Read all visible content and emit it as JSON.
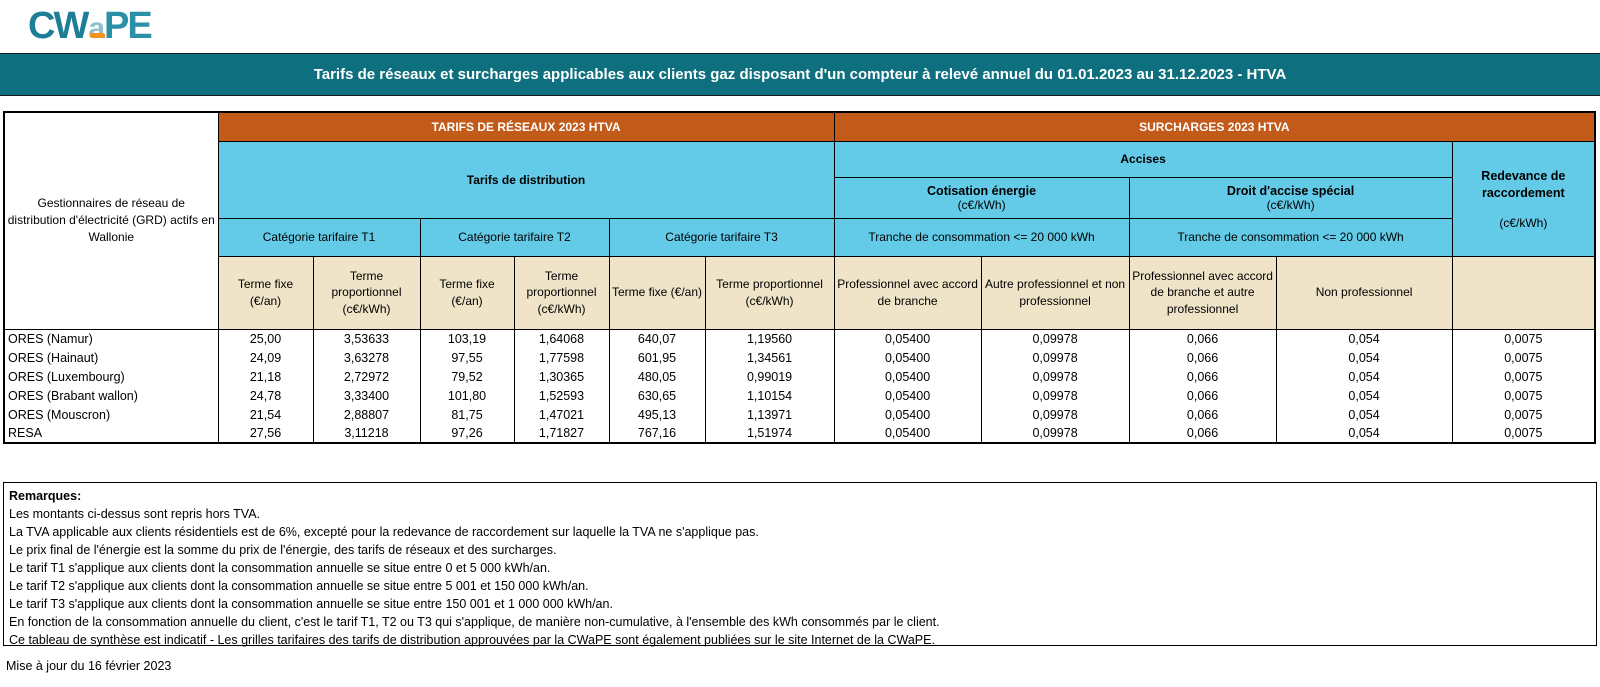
{
  "logo": {
    "cw": "CW",
    "a": "a",
    "pe": "PE"
  },
  "banner": {
    "title": "Tarifs de réseaux et surcharges applicables aux clients gaz disposant d'un compteur à relevé annuel du 01.01.2023 au 31.12.2023 - HTVA"
  },
  "table": {
    "row_header": "Gestionnaires de réseau de distribution d'électricité (GRD) actifs en Wallonie",
    "tarifs_title": "TARIFS DE RÉSEAUX 2023 HTVA",
    "surcharges_title": "SURCHARGES 2023 HTVA",
    "tarifs_group": "Tarifs de distribution",
    "accises_group": "Accises",
    "redevance": {
      "title": "Redevance de raccordement",
      "unit": "(c€/kWh)"
    },
    "accise_groups": [
      {
        "title": "Cotisation énergie",
        "unit": "(c€/kWh)"
      },
      {
        "title": "Droit d'accise spécial",
        "unit": "(c€/kWh)"
      }
    ],
    "categories": [
      "Catégorie tarifaire T1",
      "Catégorie tarifaire T2",
      "Catégorie tarifaire T3"
    ],
    "tranches": [
      "Tranche de consommation <= 20 000 kWh",
      "Tranche de consommation <= 20 000 kWh"
    ],
    "tarif_cols": [
      "Terme fixe (€/an)",
      "Terme proportionnel (c€/kWh)",
      "Terme fixe (€/an)",
      "Terme proportionnel (c€/kWh)",
      "Terme fixe (€/an)",
      "Terme proportionnel (c€/kWh)"
    ],
    "surcharge_cols": [
      "Professionnel avec accord de branche",
      "Autre professionnel et non professionnel",
      "Professionnel avec accord de branche et autre professionnel",
      "Non professionnel"
    ],
    "rows": [
      {
        "name": "ORES (Namur)",
        "values": [
          "25,00",
          "3,53633",
          "103,19",
          "1,64068",
          "640,07",
          "1,19560",
          "0,05400",
          "0,09978",
          "0,066",
          "0,054",
          "0,0075"
        ]
      },
      {
        "name": "ORES (Hainaut)",
        "values": [
          "24,09",
          "3,63278",
          "97,55",
          "1,77598",
          "601,95",
          "1,34561",
          "0,05400",
          "0,09978",
          "0,066",
          "0,054",
          "0,0075"
        ]
      },
      {
        "name": "ORES (Luxembourg)",
        "values": [
          "21,18",
          "2,72972",
          "79,52",
          "1,30365",
          "480,05",
          "0,99019",
          "0,05400",
          "0,09978",
          "0,066",
          "0,054",
          "0,0075"
        ]
      },
      {
        "name": "ORES (Brabant wallon)",
        "values": [
          "24,78",
          "3,33400",
          "101,80",
          "1,52593",
          "630,65",
          "1,10154",
          "0,05400",
          "0,09978",
          "0,066",
          "0,054",
          "0,0075"
        ]
      },
      {
        "name": "ORES (Mouscron)",
        "values": [
          "21,54",
          "2,88807",
          "81,75",
          "1,47021",
          "495,13",
          "1,13971",
          "0,05400",
          "0,09978",
          "0,066",
          "0,054",
          "0,0075"
        ]
      },
      {
        "name": "RESA",
        "values": [
          "27,56",
          "3,11218",
          "97,26",
          "1,71827",
          "767,16",
          "1,51974",
          "0,05400",
          "0,09978",
          "0,066",
          "0,054",
          "0,0075"
        ]
      }
    ]
  },
  "remarks": {
    "title": "Remarques:",
    "lines": [
      "Les montants ci-dessus sont repris hors TVA.",
      "La TVA applicable aux clients résidentiels est de 6%, excepté pour la redevance de raccordement sur laquelle la TVA ne s'applique pas.",
      "Le prix final de l'énergie est la somme du prix de l'énergie, des tarifs de réseaux et des surcharges.",
      "Le tarif T1 s'applique aux clients dont la consommation annuelle se situe entre  0 et 5 000 kWh/an.",
      "Le tarif T2 s'applique aux clients dont la consommation annuelle se situe entre 5 001 et 150 000 kWh/an.",
      "Le tarif T3 s'applique aux clients dont la consommation annuelle se situe entre 150 001 et 1 000 000 kWh/an.",
      "En fonction de la consommation annuelle du client, c'est le tarif T1, T2 ou T3 qui s'applique, de manière non-cumulative, à l'ensemble des kWh consommés par le client.",
      "Ce tableau de synthèse est indicatif - Les grilles tarifaires des tarifs de distribution approuvées par la CWaPE sont également publiées sur le site Internet de la CWaPE."
    ]
  },
  "footer": {
    "updated": "Mise à jour du 16 février 2023"
  },
  "colors": {
    "teal_banner": "#0E6F7E",
    "orange_header": "#C25A1A",
    "blue_header": "#63CBE8",
    "beige_header": "#F0E4C8",
    "logo_teal": "#1F7E97",
    "logo_orange": "#F2941C"
  }
}
